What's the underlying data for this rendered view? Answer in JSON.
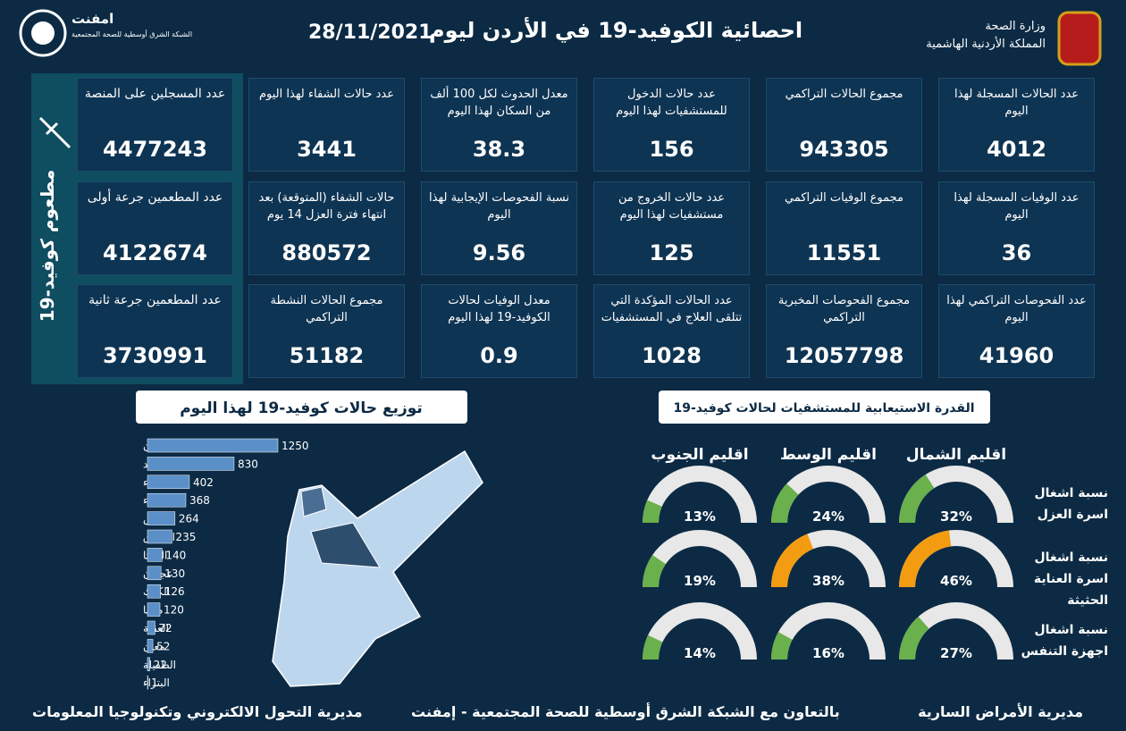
{
  "header": {
    "logo_name": "امفنت",
    "logo_subtitle": "الشبكة الشرق أوسطية للصحة المجتمعية",
    "title": "احصائية الكوفيد-19 في الأردن ليوم",
    "date": "28/11/2021",
    "ministry": "وزارة الصحة",
    "kingdom": "المملكة الأردنية الهاشمية"
  },
  "stats": [
    [
      {
        "label": "عدد الحالات المسجلة لهذا اليوم",
        "value": 4012
      },
      {
        "label": "مجموع الحالات التراكمي",
        "value": 943305
      },
      {
        "label": "عدد حالات الدخول للمستشفيات لهذا اليوم",
        "value": 156
      },
      {
        "label": "معدل الحدوث لكل 100 ألف من السكان لهذا اليوم",
        "value": 38.3
      },
      {
        "label": "عدد حالات الشفاء لهذا اليوم",
        "value": 3441
      }
    ],
    [
      {
        "label": "عدد الوفيات المسجلة لهذا اليوم",
        "value": 36
      },
      {
        "label": "مجموع الوفيات التراكمي",
        "value": 11551
      },
      {
        "label": "عدد حالات الخروج من مستشفيات لهذا اليوم",
        "value": 125
      },
      {
        "label": "نسبة الفحوصات الإيجابية لهذا اليوم",
        "value": 9.56
      },
      {
        "label": "حالات الشفاء (المتوقعة) بعد انتهاء فترة العزل 14 يوم",
        "value": 880572
      }
    ],
    [
      {
        "label": "عدد الفحوصات التراكمي لهذا اليوم",
        "value": 41960
      },
      {
        "label": "مجموع الفحوصات المخبرية التراكمي",
        "value": 12057798
      },
      {
        "label": "عدد الحالات المؤكدة التي تتلقى العلاج في المستشفيات",
        "value": 1028
      },
      {
        "label": "معدل الوفيات لحالات الكوفيد-19 لهذا اليوم",
        "value": 0.9
      },
      {
        "label": "مجموع الحالات النشطة التراكمي",
        "value": 51182
      }
    ]
  ],
  "vaccine": {
    "title": "مطعوم كوفيد-19",
    "cards": [
      {
        "label": "عدد المسجلين على المنصة",
        "value": 4477243
      },
      {
        "label": "عدد المطعمين جرعة أولى",
        "value": 4122674
      },
      {
        "label": "عدد المطعمين جرعة ثانية",
        "value": 3730991
      }
    ]
  },
  "distribution": {
    "title": "توزيع حالات كوفيد-19 لهذا اليوم",
    "color": "#5b8fc7",
    "categories": [
      "عمان",
      "اربد",
      "البلقاء",
      "الزرقاء",
      "جرش",
      "المفرق",
      "الرمثا",
      "عجلون",
      "الكرك",
      "مادبا",
      "العقبة",
      "معان",
      "الطفيلة",
      "البتراء"
    ],
    "values": [
      1250,
      830,
      402,
      368,
      264,
      235,
      140,
      130,
      126,
      120,
      72,
      52,
      22,
      1
    ]
  },
  "capacity": {
    "title": "القدرة الاستيعابية للمستشفيات لحالات كوفيد-19",
    "regions": [
      "اقليم الشمال",
      "اقليم الوسط",
      "اقليم الجنوب"
    ],
    "rows": [
      {
        "label": "نسبة اشغال اسرة العزل",
        "values": [
          32,
          24,
          13
        ],
        "value_labels": [
          "32%",
          "24%",
          "13%"
        ],
        "colors": [
          "#6ab04c",
          "#6ab04c",
          "#6ab04c"
        ]
      },
      {
        "label": "نسبة اشغال اسرة العناية الحثيثة",
        "values": [
          46,
          38,
          19
        ],
        "value_labels": [
          "46%",
          "38%",
          "19%"
        ],
        "colors": [
          "#f39c12",
          "#f39c12",
          "#6ab04c"
        ]
      },
      {
        "label": "نسبة اشغال اجهزة التنفس",
        "values": [
          27,
          16,
          14
        ],
        "value_labels": [
          "27%",
          "16%",
          "14%"
        ],
        "colors": [
          "#6ab04c",
          "#6ab04c",
          "#6ab04c"
        ]
      }
    ]
  },
  "footer": {
    "left": "مديرية التحول الالكتروني وتكنولوجيا المعلومات",
    "center": "بالتعاون مع الشبكة الشرق أوسطية للصحة المجتمعية - إمفنت",
    "right": "مديرية الأمراض السارية"
  }
}
